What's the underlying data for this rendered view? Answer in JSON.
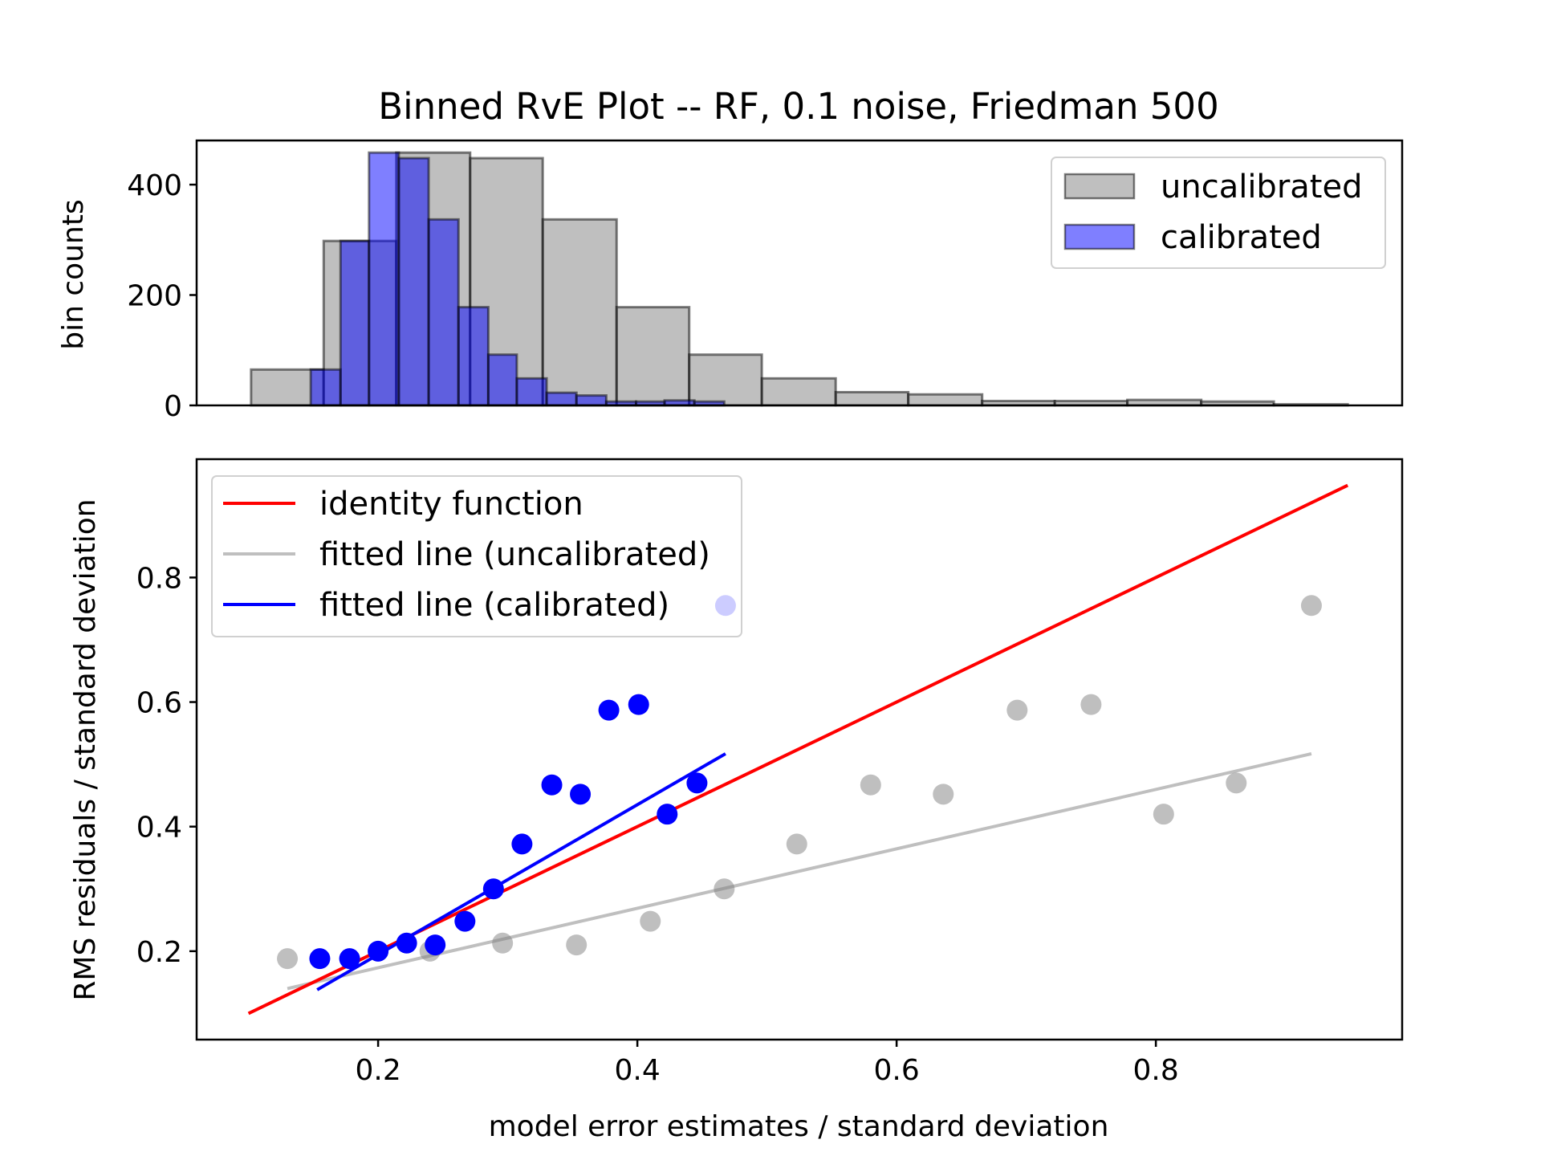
{
  "chart_data": [
    {
      "type": "bar",
      "subtype": "histogram",
      "title": "Binned RvE Plot -- RF, 0.1 noise, Friedman 500",
      "ylabel": "bin counts",
      "xlabel": "",
      "xlim": [
        0.06,
        0.99
      ],
      "ylim": [
        0,
        480
      ],
      "yticks": [
        "0",
        "200",
        "400"
      ],
      "legend_position": "top-right",
      "series": [
        {
          "name": "uncalibrated",
          "color": "#808080",
          "edge_color": "#000000",
          "bins": [
            {
              "x0": 0.102,
              "x1": 0.158,
              "count": 65
            },
            {
              "x0": 0.158,
              "x1": 0.214,
              "count": 298
            },
            {
              "x0": 0.214,
              "x1": 0.271,
              "count": 458
            },
            {
              "x0": 0.271,
              "x1": 0.327,
              "count": 448
            },
            {
              "x0": 0.327,
              "x1": 0.384,
              "count": 337
            },
            {
              "x0": 0.384,
              "x1": 0.44,
              "count": 178
            },
            {
              "x0": 0.44,
              "x1": 0.496,
              "count": 92
            },
            {
              "x0": 0.496,
              "x1": 0.553,
              "count": 49
            },
            {
              "x0": 0.553,
              "x1": 0.609,
              "count": 24
            },
            {
              "x0": 0.609,
              "x1": 0.666,
              "count": 20
            },
            {
              "x0": 0.666,
              "x1": 0.722,
              "count": 8
            },
            {
              "x0": 0.722,
              "x1": 0.778,
              "count": 8
            },
            {
              "x0": 0.778,
              "x1": 0.835,
              "count": 10
            },
            {
              "x0": 0.835,
              "x1": 0.891,
              "count": 7
            },
            {
              "x0": 0.891,
              "x1": 0.948,
              "count": 2
            }
          ]
        },
        {
          "name": "calibrated",
          "color": "#0000ff",
          "edge_color": "#000000",
          "bins": [
            {
              "x0": 0.148,
              "x1": 0.171,
              "count": 65
            },
            {
              "x0": 0.171,
              "x1": 0.193,
              "count": 298
            },
            {
              "x0": 0.193,
              "x1": 0.216,
              "count": 458
            },
            {
              "x0": 0.216,
              "x1": 0.239,
              "count": 448
            },
            {
              "x0": 0.239,
              "x1": 0.262,
              "count": 337
            },
            {
              "x0": 0.262,
              "x1": 0.285,
              "count": 178
            },
            {
              "x0": 0.285,
              "x1": 0.307,
              "count": 92
            },
            {
              "x0": 0.307,
              "x1": 0.33,
              "count": 49
            },
            {
              "x0": 0.33,
              "x1": 0.353,
              "count": 23
            },
            {
              "x0": 0.353,
              "x1": 0.376,
              "count": 18
            },
            {
              "x0": 0.376,
              "x1": 0.399,
              "count": 7
            },
            {
              "x0": 0.399,
              "x1": 0.421,
              "count": 7
            },
            {
              "x0": 0.421,
              "x1": 0.444,
              "count": 9
            },
            {
              "x0": 0.444,
              "x1": 0.467,
              "count": 7
            }
          ]
        }
      ]
    },
    {
      "type": "scatter",
      "title": "",
      "xlabel": "model error estimates / standard deviation",
      "ylabel": "RMS residuals / standard deviation",
      "xlim": [
        0.06,
        0.99
      ],
      "ylim": [
        0.058,
        0.99
      ],
      "xticks": [
        "0.2",
        "0.4",
        "0.6",
        "0.8"
      ],
      "yticks": [
        "0.2",
        "0.4",
        "0.6",
        "0.8"
      ],
      "legend_position": "top-left",
      "grid": false,
      "lines": [
        {
          "name": "identity function",
          "color": "#ff0000",
          "x": [
            0.1,
            0.948
          ],
          "y": [
            0.1,
            0.948
          ]
        },
        {
          "name": "fitted line (uncalibrated)",
          "color": "#bfbfbf",
          "x": [
            0.13,
            0.92
          ],
          "y": [
            0.14,
            0.517
          ]
        },
        {
          "name": "fitted line (calibrated)",
          "color": "#0000ff",
          "x": [
            0.153,
            0.468
          ],
          "y": [
            0.138,
            0.517
          ]
        }
      ],
      "scatter": [
        {
          "name": "uncalibrated points",
          "color": "#808080",
          "alpha": 0.5,
          "x": [
            0.13,
            0.24,
            0.296,
            0.353,
            0.41,
            0.467,
            0.523,
            0.58,
            0.636,
            0.693,
            0.75,
            0.806,
            0.862,
            0.92
          ],
          "y": [
            0.188,
            0.2,
            0.213,
            0.21,
            0.248,
            0.3,
            0.372,
            0.467,
            0.452,
            0.587,
            0.596,
            0.42,
            0.47,
            0.755
          ]
        },
        {
          "name": "calibrated points",
          "color": "#0000ff",
          "alpha": 1.0,
          "x": [
            0.155,
            0.178,
            0.2,
            0.222,
            0.244,
            0.267,
            0.289,
            0.311,
            0.334,
            0.356,
            0.378,
            0.401,
            0.423,
            0.446
          ],
          "y": [
            0.188,
            0.188,
            0.2,
            0.213,
            0.21,
            0.248,
            0.3,
            0.372,
            0.467,
            0.452,
            0.587,
            0.596,
            0.42,
            0.47
          ]
        },
        {
          "name": "legend-overlapping point",
          "color": "#0000ff",
          "alpha": 0.2,
          "x": [
            0.468
          ],
          "y": [
            0.755
          ]
        }
      ]
    }
  ]
}
